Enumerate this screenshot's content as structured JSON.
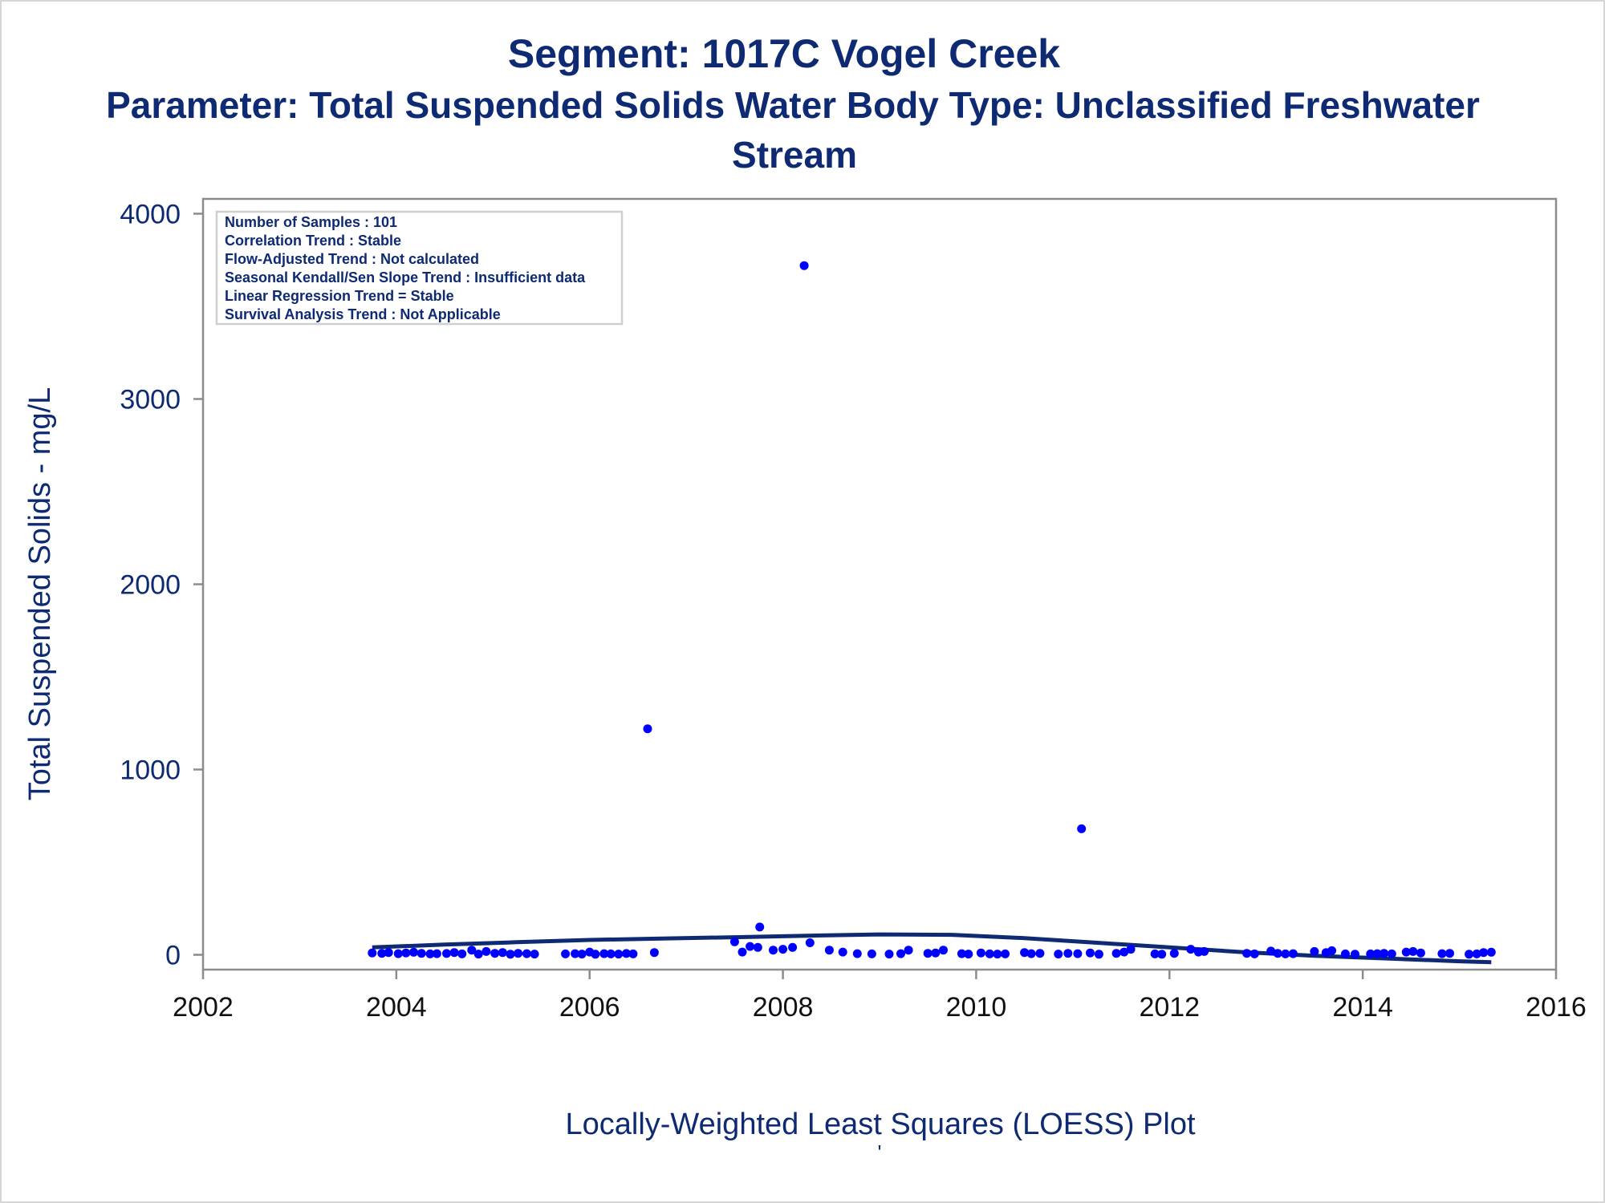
{
  "titles": {
    "line1": "Segment: 1017C  Vogel Creek",
    "line2": "Parameter: Total Suspended Solids   Water Body Type: Unclassified Freshwater",
    "line3": "Stream"
  },
  "footnote": {
    "caption": "Locally-Weighted Least Squares (LOESS) Plot",
    "mark": "'"
  },
  "inset": {
    "lines": [
      "Number of Samples : 101",
      "Correlation Trend : Stable",
      "Flow-Adjusted Trend : Not calculated",
      "Seasonal Kendall/Sen Slope Trend : Insufficient data",
      "Linear Regression Trend = Stable",
      "Survival Analysis Trend : Not Applicable"
    ]
  },
  "colors": {
    "title": "#0d2a73",
    "points": "#0000ff",
    "loess": "#0d2a73",
    "axis": "#8c8c8c",
    "tick_text_y": "#0d2a73",
    "tick_text_x": "#111111"
  },
  "chart_data": {
    "type": "scatter",
    "xlabel": "",
    "ylabel": "Total Suspended Solids - mg/L",
    "xlim": [
      2002,
      2016
    ],
    "ylim": [
      -80,
      4080
    ],
    "xticks": [
      2002,
      2004,
      2006,
      2008,
      2010,
      2012,
      2014,
      2016
    ],
    "yticks": [
      0,
      1000,
      2000,
      3000,
      4000
    ],
    "grid": false,
    "series": [
      {
        "kind": "points",
        "points": [
          [
            2003.75,
            10
          ],
          [
            2003.85,
            8
          ],
          [
            2003.92,
            12
          ],
          [
            2004.02,
            6
          ],
          [
            2004.1,
            10
          ],
          [
            2004.18,
            14
          ],
          [
            2004.26,
            8
          ],
          [
            2004.35,
            5
          ],
          [
            2004.42,
            6
          ],
          [
            2004.52,
            7
          ],
          [
            2004.6,
            12
          ],
          [
            2004.68,
            5
          ],
          [
            2004.78,
            25
          ],
          [
            2004.85,
            4
          ],
          [
            2004.93,
            18
          ],
          [
            2005.02,
            8
          ],
          [
            2005.1,
            12
          ],
          [
            2005.18,
            3
          ],
          [
            2005.26,
            8
          ],
          [
            2005.35,
            6
          ],
          [
            2005.43,
            4
          ],
          [
            2005.75,
            5
          ],
          [
            2005.85,
            6
          ],
          [
            2005.92,
            4
          ],
          [
            2006.0,
            15
          ],
          [
            2006.06,
            3
          ],
          [
            2006.15,
            6
          ],
          [
            2006.22,
            5
          ],
          [
            2006.3,
            4
          ],
          [
            2006.38,
            7
          ],
          [
            2006.45,
            5
          ],
          [
            2006.6,
            1220
          ],
          [
            2006.67,
            12
          ],
          [
            2007.5,
            70
          ],
          [
            2007.58,
            15
          ],
          [
            2007.66,
            45
          ],
          [
            2007.74,
            40
          ],
          [
            2007.76,
            150
          ],
          [
            2007.9,
            25
          ],
          [
            2008.0,
            30
          ],
          [
            2008.1,
            40
          ],
          [
            2008.22,
            3720
          ],
          [
            2008.28,
            65
          ],
          [
            2008.48,
            25
          ],
          [
            2008.62,
            15
          ],
          [
            2008.77,
            6
          ],
          [
            2008.92,
            5
          ],
          [
            2009.1,
            4
          ],
          [
            2009.22,
            6
          ],
          [
            2009.3,
            25
          ],
          [
            2009.5,
            8
          ],
          [
            2009.58,
            10
          ],
          [
            2009.66,
            25
          ],
          [
            2009.85,
            6
          ],
          [
            2009.92,
            4
          ],
          [
            2010.05,
            10
          ],
          [
            2010.14,
            5
          ],
          [
            2010.22,
            4
          ],
          [
            2010.3,
            5
          ],
          [
            2010.5,
            12
          ],
          [
            2010.57,
            6
          ],
          [
            2010.66,
            8
          ],
          [
            2010.85,
            4
          ],
          [
            2010.95,
            8
          ],
          [
            2011.05,
            6
          ],
          [
            2011.09,
            680
          ],
          [
            2011.18,
            10
          ],
          [
            2011.27,
            3
          ],
          [
            2011.45,
            8
          ],
          [
            2011.53,
            15
          ],
          [
            2011.6,
            30
          ],
          [
            2011.85,
            5
          ],
          [
            2011.92,
            3
          ],
          [
            2012.05,
            8
          ],
          [
            2012.22,
            30
          ],
          [
            2012.3,
            15
          ],
          [
            2012.36,
            18
          ],
          [
            2012.8,
            8
          ],
          [
            2012.88,
            5
          ],
          [
            2013.05,
            20
          ],
          [
            2013.12,
            8
          ],
          [
            2013.2,
            5
          ],
          [
            2013.28,
            6
          ],
          [
            2013.5,
            18
          ],
          [
            2013.62,
            12
          ],
          [
            2013.68,
            22
          ],
          [
            2013.82,
            5
          ],
          [
            2013.92,
            3
          ],
          [
            2014.08,
            5
          ],
          [
            2014.15,
            6
          ],
          [
            2014.22,
            8
          ],
          [
            2014.3,
            5
          ],
          [
            2014.45,
            15
          ],
          [
            2014.52,
            18
          ],
          [
            2014.6,
            10
          ],
          [
            2014.82,
            6
          ],
          [
            2014.9,
            8
          ],
          [
            2015.1,
            3
          ],
          [
            2015.18,
            5
          ],
          [
            2015.25,
            12
          ],
          [
            2015.33,
            14
          ]
        ]
      },
      {
        "kind": "loess",
        "points": [
          [
            2003.75,
            40
          ],
          [
            2004.5,
            55
          ],
          [
            2005.25,
            68
          ],
          [
            2006.0,
            80
          ],
          [
            2006.75,
            88
          ],
          [
            2007.5,
            95
          ],
          [
            2008.25,
            103
          ],
          [
            2009.0,
            110
          ],
          [
            2009.75,
            108
          ],
          [
            2010.5,
            90
          ],
          [
            2011.25,
            65
          ],
          [
            2012.0,
            40
          ],
          [
            2012.75,
            15
          ],
          [
            2013.5,
            -5
          ],
          [
            2014.25,
            -20
          ],
          [
            2015.0,
            -35
          ],
          [
            2015.33,
            -40
          ]
        ]
      }
    ]
  }
}
